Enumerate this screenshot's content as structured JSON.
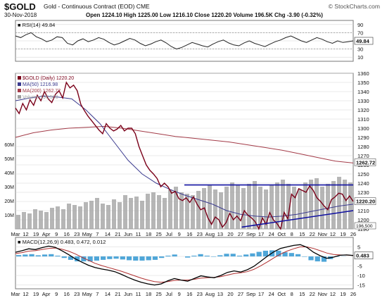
{
  "header": {
    "ticker": "$GOLD",
    "contract": "Gold - Continuous Contract (EOD)  CME",
    "date": "30-Nov-2018",
    "ohlc": "Open 1224.10  High 1225.00  Low 1216.10  Close 1220.20  Volume 196.5K  Chg -3.90 (-0.32%)",
    "logo": "© StockCharts.com"
  },
  "chart_data": [
    {
      "type": "line",
      "title": "RSI(14) 49.84",
      "ylim": [
        0,
        100
      ],
      "yticks": [
        "90",
        "70",
        "50",
        "30",
        "10"
      ],
      "guides": [
        70,
        30
      ],
      "rsi": [
        62,
        58,
        65,
        70,
        60,
        55,
        48,
        52,
        60,
        58,
        44,
        40,
        50,
        55,
        48,
        52,
        58,
        54,
        46,
        40,
        44,
        50,
        56,
        52,
        44,
        38,
        42,
        48,
        52,
        45,
        36,
        30,
        34,
        40,
        46,
        42,
        38,
        35,
        42,
        48,
        52,
        45,
        40,
        38,
        45,
        50,
        44,
        40,
        36,
        42,
        48,
        52,
        58,
        62,
        56,
        50,
        46,
        52,
        58,
        54,
        48,
        44,
        50,
        46,
        48,
        50
      ],
      "current": "49.84"
    },
    {
      "type": "line",
      "legend": [
        "$GOLD (Daily) 1220.20",
        "MA(50) 1216.98",
        "MA(200) 1262.72",
        "Volume 196,500"
      ],
      "ylim": [
        1190,
        1360
      ],
      "yticks": [
        1360,
        1350,
        1340,
        1330,
        1320,
        1310,
        1300,
        1290,
        1280,
        1270,
        1260,
        1250,
        1240,
        1230,
        1220,
        1210,
        1200,
        1190
      ],
      "volume_ticks": [
        "60M",
        "50M",
        "40M",
        "30M",
        "20M",
        "10M"
      ],
      "series": [
        {
          "name": "$GOLD (Daily)",
          "color": "#7a0019",
          "values": [
            1322,
            1316,
            1327,
            1320,
            1331,
            1325,
            1336,
            1330,
            1340,
            1332,
            1328,
            1337,
            1341,
            1333,
            1350,
            1344,
            1347,
            1341,
            1326,
            1319,
            1313,
            1308,
            1303,
            1298,
            1294,
            1305,
            1300,
            1297,
            1299,
            1303,
            1297,
            1300,
            1300,
            1294,
            1280,
            1270,
            1260,
            1254,
            1250,
            1245,
            1236,
            1240,
            1236,
            1229,
            1231,
            1223,
            1221,
            1224,
            1219,
            1225,
            1217,
            1211,
            1213,
            1202,
            1195,
            1203,
            1200,
            1192,
            1197,
            1207,
            1200,
            1204,
            1199,
            1210,
            1205,
            1202,
            1198,
            1190,
            1202,
            1195,
            1208,
            1200,
            1196,
            1190,
            1208,
            1201,
            1228,
            1224,
            1234,
            1232,
            1230,
            1237,
            1232,
            1224,
            1220,
            1215,
            1211,
            1222,
            1225,
            1229,
            1228,
            1221,
            1226,
            1220
          ]
        },
        {
          "name": "MA(50)",
          "color": "#3b3b8f",
          "values": [
            1330,
            1333,
            1335,
            1334,
            1332,
            1320,
            1305,
            1285,
            1265,
            1250,
            1240,
            1233,
            1227,
            1222,
            1217,
            1210,
            1206,
            1204,
            1203,
            1204,
            1206,
            1209,
            1212,
            1215,
            1217
          ]
        },
        {
          "name": "MA(200)",
          "color": "#a33b48",
          "values": [
            1290,
            1295,
            1298,
            1300,
            1301,
            1302,
            1300,
            1297,
            1294,
            1291,
            1289,
            1287,
            1285,
            1282,
            1279,
            1276,
            1272,
            1268,
            1264,
            1262
          ]
        },
        {
          "name": "Volume",
          "color": "#9e9e9e",
          "values": [
            10,
            12,
            11,
            14,
            13,
            12,
            15,
            16,
            14,
            18,
            17,
            16,
            19,
            20,
            22,
            18,
            17,
            21,
            19,
            24,
            22,
            23,
            20,
            25,
            26,
            24,
            22,
            28,
            30,
            26,
            25,
            24,
            27,
            29,
            31,
            28,
            26,
            30,
            33,
            31,
            29,
            32,
            34,
            30,
            28,
            31,
            33,
            35,
            32,
            30,
            28,
            33,
            35,
            36,
            30,
            32,
            34,
            37,
            35,
            33
          ]
        }
      ],
      "current": {
        "price": "1220.20",
        "ma50": "1216.98",
        "ma200": "1262.72",
        "volume": "196,500"
      }
    },
    {
      "type": "line",
      "title": "MACD(12,26,9) 0.483, 0.472, 0.012",
      "ylim": [
        -17,
        10
      ],
      "yticks": [
        "5",
        "0",
        "-5",
        "-10",
        "-15"
      ],
      "series": [
        {
          "name": "MACD",
          "color": "#000000",
          "values": [
            2.2,
            3.0,
            4.0,
            3.6,
            4.6,
            5.4,
            4.8,
            3.0,
            1.0,
            -1.2,
            -3.0,
            -4.6,
            -5.8,
            -6.6,
            -7.2,
            -8.0,
            -9.4,
            -11.0,
            -12.4,
            -13.6,
            -14.4,
            -15.0,
            -14.4,
            -12.8,
            -11.6,
            -12.4,
            -13.0,
            -11.6,
            -10.2,
            -10.8,
            -11.2,
            -10.0,
            -8.4,
            -7.6,
            -8.2,
            -7.0,
            -5.2,
            -2.6,
            0.0,
            2.4,
            4.2,
            5.0,
            5.8,
            6.2,
            4.8,
            2.2,
            0.4,
            -1.0,
            -0.4,
            0.6,
            0.8,
            0.5
          ]
        },
        {
          "name": "Signal",
          "color": "#b03030",
          "values": [
            1.5,
            2.0,
            2.8,
            3.0,
            3.6,
            4.2,
            4.4,
            3.8,
            2.8,
            1.4,
            -0.4,
            -2.0,
            -3.6,
            -4.8,
            -5.8,
            -6.8,
            -7.8,
            -9.0,
            -10.2,
            -11.4,
            -12.4,
            -13.2,
            -13.6,
            -13.2,
            -12.6,
            -12.4,
            -12.4,
            -12.0,
            -11.4,
            -11.2,
            -11.0,
            -10.6,
            -9.8,
            -9.0,
            -8.6,
            -8.0,
            -6.8,
            -5.0,
            -3.0,
            -0.8,
            1.2,
            2.8,
            4.0,
            5.0,
            5.0,
            4.2,
            3.0,
            1.8,
            1.0,
            0.8,
            0.7,
            0.5
          ]
        },
        {
          "name": "Histogram",
          "color": "#4fa6d8",
          "values": [
            0.7,
            1.0,
            1.2,
            0.6,
            1.0,
            1.2,
            0.4,
            -0.8,
            -1.8,
            -2.6,
            -2.6,
            -2.6,
            -2.2,
            -1.8,
            -1.4,
            -1.2,
            -1.6,
            -2.0,
            -2.2,
            -2.2,
            -2.0,
            -1.8,
            -0.8,
            0.4,
            1.0,
            0.0,
            -0.6,
            0.4,
            1.2,
            0.4,
            -0.2,
            0.6,
            1.4,
            1.4,
            0.4,
            1.0,
            1.6,
            2.4,
            3.0,
            3.2,
            3.0,
            2.2,
            1.8,
            1.2,
            -0.2,
            -2.0,
            -2.6,
            -2.8,
            -1.4,
            -0.2,
            0.1,
            0.0
          ]
        }
      ],
      "current": "0.483"
    }
  ],
  "x_axis_labels": [
    "Mar",
    "12",
    "19",
    "Apr",
    "9",
    "16",
    "23",
    "May",
    "7",
    "14",
    "21",
    "Jun",
    "11",
    "18",
    "25",
    "Jul",
    "9",
    "16",
    "23",
    "Aug",
    "13",
    "20",
    "27",
    "Sep",
    "17",
    "24",
    "Oct",
    "8",
    "15",
    "22",
    "Nov",
    "12",
    "19",
    "26"
  ],
  "annotations": {
    "resistance_level": 1238,
    "support_start": [
      0.67,
      1192
    ],
    "support_end": [
      1.0,
      1210
    ]
  },
  "colors": {
    "grid": "#d6d6d6",
    "price": "#7a0019",
    "ma50": "#3b3b8f",
    "ma200": "#a33b48",
    "volume": "#9e9e9e",
    "trendline": "#1010a0"
  }
}
